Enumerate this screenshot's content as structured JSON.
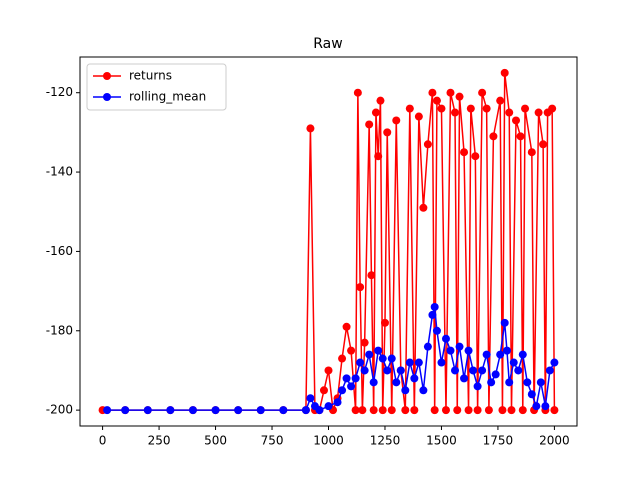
{
  "chart_data": {
    "type": "line",
    "title": "Raw",
    "xlim": [
      -100,
      2100
    ],
    "xticks": [
      0,
      250,
      500,
      750,
      1000,
      1250,
      1500,
      1750,
      2000
    ],
    "ylim": [
      -204,
      -111
    ],
    "yticks": [
      -200,
      -180,
      -160,
      -140,
      -120
    ],
    "legend": "upper left",
    "series": [
      {
        "name": "returns",
        "color": "#ff0000",
        "x": [
          0,
          100,
          200,
          300,
          400,
          500,
          600,
          700,
          800,
          900,
          920,
          940,
          960,
          980,
          1000,
          1020,
          1040,
          1060,
          1080,
          1100,
          1120,
          1130,
          1140,
          1150,
          1160,
          1180,
          1190,
          1200,
          1210,
          1220,
          1230,
          1240,
          1250,
          1260,
          1280,
          1300,
          1320,
          1340,
          1360,
          1380,
          1400,
          1420,
          1440,
          1460,
          1470,
          1480,
          1500,
          1520,
          1540,
          1560,
          1570,
          1580,
          1600,
          1620,
          1630,
          1650,
          1660,
          1680,
          1700,
          1710,
          1730,
          1760,
          1770,
          1780,
          1800,
          1810,
          1830,
          1850,
          1860,
          1870,
          1900,
          1910,
          1930,
          1950,
          1960,
          1970,
          1990,
          2000
        ],
        "values": [
          -200,
          -200,
          -200,
          -200,
          -200,
          -200,
          -200,
          -200,
          -200,
          -200,
          -129,
          -200,
          -200,
          -195,
          -190,
          -200,
          -197,
          -187,
          -179,
          -185,
          -200,
          -120,
          -169,
          -200,
          -183,
          -128,
          -166,
          -200,
          -125,
          -136,
          -122,
          -200,
          -178,
          -130,
          -200,
          -127,
          -190,
          -200,
          -124,
          -200,
          -126,
          -149,
          -133,
          -120,
          -200,
          -122,
          -124,
          -200,
          -120,
          -125,
          -200,
          -121,
          -135,
          -200,
          -124,
          -136,
          -200,
          -120,
          -124,
          -200,
          -131,
          -122,
          -200,
          -115,
          -125,
          -200,
          -127,
          -131,
          -200,
          -124,
          -135,
          -200,
          -125,
          -133,
          -200,
          -125,
          -124,
          -200
        ]
      },
      {
        "name": "rolling_mean",
        "color": "#0000ff",
        "x": [
          20,
          100,
          200,
          300,
          400,
          500,
          600,
          700,
          800,
          900,
          920,
          940,
          960,
          1000,
          1040,
          1060,
          1080,
          1100,
          1120,
          1140,
          1160,
          1180,
          1200,
          1220,
          1240,
          1260,
          1280,
          1300,
          1320,
          1340,
          1360,
          1380,
          1400,
          1420,
          1440,
          1460,
          1470,
          1480,
          1500,
          1520,
          1540,
          1560,
          1580,
          1600,
          1620,
          1640,
          1660,
          1680,
          1700,
          1720,
          1740,
          1760,
          1780,
          1790,
          1800,
          1820,
          1840,
          1860,
          1880,
          1900,
          1920,
          1940,
          1960,
          1980,
          2000
        ],
        "values": [
          -200,
          -200,
          -200,
          -200,
          -200,
          -200,
          -200,
          -200,
          -200,
          -200,
          -197,
          -199,
          -200,
          -199,
          -198,
          -195,
          -192,
          -194,
          -192,
          -188,
          -190,
          -186,
          -193,
          -185,
          -187,
          -190,
          -187,
          -193,
          -190,
          -195,
          -188,
          -192,
          -188,
          -195,
          -184,
          -176,
          -174,
          -180,
          -188,
          -182,
          -185,
          -190,
          -184,
          -192,
          -185,
          -190,
          -194,
          -190,
          -186,
          -193,
          -191,
          -186,
          -178,
          -185,
          -193,
          -188,
          -190,
          -186,
          -193,
          -196,
          -199,
          -193,
          -199,
          -190,
          -188
        ]
      }
    ]
  }
}
